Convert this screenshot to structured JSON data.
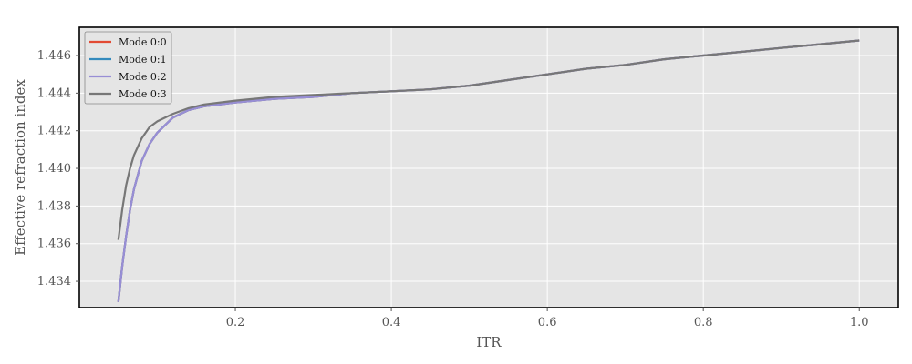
{
  "chart_data": {
    "type": "line",
    "title": "",
    "xlabel": "ITR",
    "ylabel": "Effective refraction index",
    "xlim": [
      0.0,
      1.05
    ],
    "ylim": [
      1.4326,
      1.4475
    ],
    "xticks": [
      0.2,
      0.4,
      0.6,
      0.8,
      1.0
    ],
    "xtick_labels": [
      "0.2",
      "0.4",
      "0.6",
      "0.8",
      "1.0"
    ],
    "yticks": [
      1.434,
      1.436,
      1.438,
      1.44,
      1.442,
      1.444,
      1.446
    ],
    "ytick_labels": [
      "1.434",
      "1.436",
      "1.438",
      "1.440",
      "1.442",
      "1.444",
      "1.446"
    ],
    "grid": true,
    "legend_position": "top-left",
    "background_color": "#e5e5e5",
    "x": [
      0.05,
      0.055,
      0.06,
      0.065,
      0.07,
      0.08,
      0.09,
      0.1,
      0.12,
      0.14,
      0.16,
      0.18,
      0.2,
      0.25,
      0.3,
      0.35,
      0.4,
      0.45,
      0.5,
      0.55,
      0.6,
      0.65,
      0.7,
      0.75,
      0.8,
      0.85,
      0.9,
      0.95,
      1.0
    ],
    "series": [
      {
        "name": "Mode 0:0",
        "color": "#e24a33",
        "values": [
          1.4329,
          1.4348,
          1.4364,
          1.4378,
          1.4389,
          1.4404,
          1.4413,
          1.4419,
          1.4427,
          1.4431,
          1.4433,
          1.4434,
          1.4435,
          1.4437,
          1.4438,
          1.444,
          1.4441,
          1.4442,
          1.4444,
          1.4447,
          1.445,
          1.4453,
          1.4455,
          1.4458,
          1.446,
          1.4462,
          1.4464,
          1.4466,
          1.4468
        ]
      },
      {
        "name": "Mode 0:1",
        "color": "#348abd",
        "values": [
          1.4329,
          1.4348,
          1.4364,
          1.4378,
          1.4389,
          1.4404,
          1.4413,
          1.4419,
          1.4427,
          1.4431,
          1.4433,
          1.4434,
          1.4435,
          1.4437,
          1.4438,
          1.444,
          1.4441,
          1.4442,
          1.4444,
          1.4447,
          1.445,
          1.4453,
          1.4455,
          1.4458,
          1.446,
          1.4462,
          1.4464,
          1.4466,
          1.4468
        ]
      },
      {
        "name": "Mode 0:2",
        "color": "#988ed5",
        "values": [
          1.4329,
          1.4348,
          1.4364,
          1.4378,
          1.4389,
          1.4404,
          1.4413,
          1.4419,
          1.4427,
          1.4431,
          1.4433,
          1.4434,
          1.4435,
          1.4437,
          1.4438,
          1.444,
          1.4441,
          1.4442,
          1.4444,
          1.4447,
          1.445,
          1.4453,
          1.4455,
          1.4458,
          1.446,
          1.4462,
          1.4464,
          1.4466,
          1.4468
        ]
      },
      {
        "name": "Mode 0:3",
        "color": "#777777",
        "values": [
          1.4362,
          1.4378,
          1.4391,
          1.44,
          1.4407,
          1.4416,
          1.4422,
          1.4425,
          1.4429,
          1.4432,
          1.4434,
          1.4435,
          1.4436,
          1.4438,
          1.4439,
          1.444,
          1.4441,
          1.4442,
          1.4444,
          1.4447,
          1.445,
          1.4453,
          1.4455,
          1.4458,
          1.446,
          1.4462,
          1.4464,
          1.4466,
          1.4468
        ]
      }
    ]
  }
}
